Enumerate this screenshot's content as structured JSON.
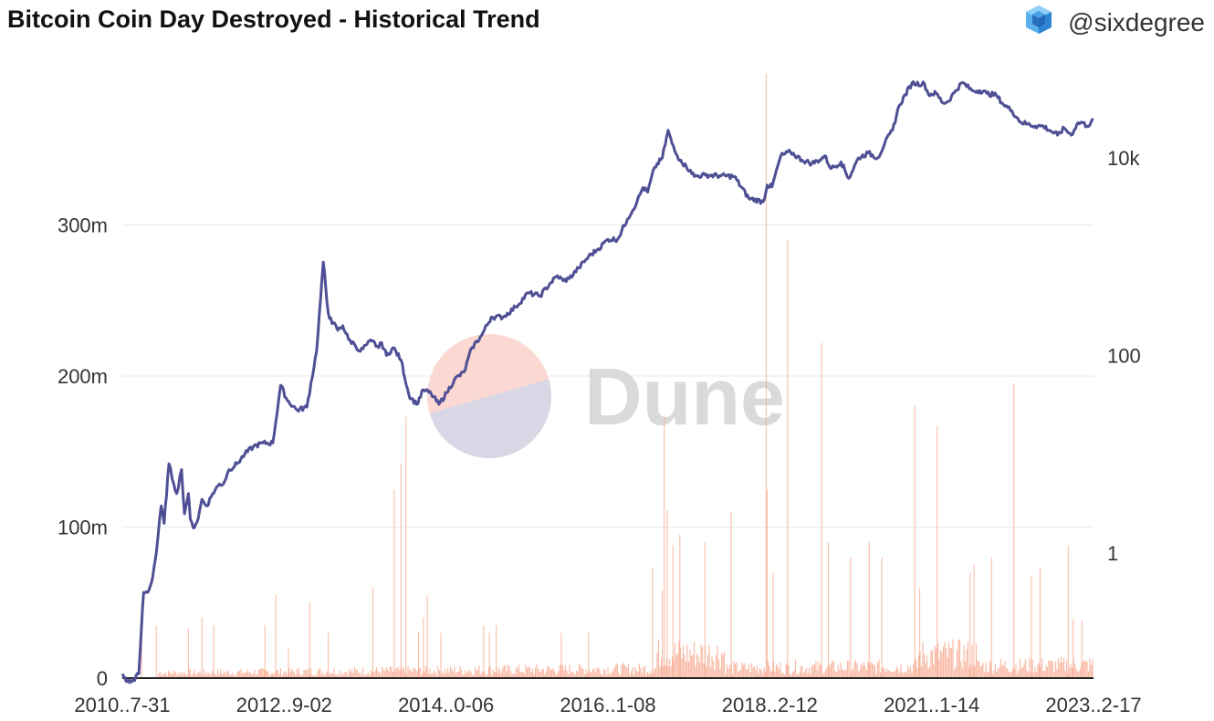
{
  "header": {
    "title": "Bitcoin Coin Day Destroyed - Historical Trend",
    "author": "@sixdegree"
  },
  "watermark": {
    "text": "Dune"
  },
  "colors": {
    "price_line": "#4f4f95",
    "cdd_bars": "#f7a98e",
    "grid": "#e9e9e9",
    "watermark_top": "#fbd9d2",
    "watermark_bottom": "#d7d7e6",
    "watermark_text": "#dadada"
  },
  "chart_data": {
    "type": "bar+line",
    "title": "Bitcoin Coin Day Destroyed - Historical Trend",
    "grid": true,
    "x_tick_labels": [
      "2010..7-31",
      "2012..9-02",
      "2014..0-06",
      "2016..1-08",
      "2018..2-12",
      "2021..1-14",
      "2023..2-17"
    ],
    "left_axis": {
      "scale": "linear",
      "ylim": [
        0,
        400000000
      ],
      "tick_values": [
        0,
        100000000,
        200000000,
        300000000
      ],
      "tick_labels": [
        "0",
        "100m",
        "200m",
        "300m"
      ]
    },
    "right_axis": {
      "scale": "log",
      "tick_values": [
        1,
        100,
        10000
      ],
      "tick_labels": [
        "1",
        "100",
        "10k"
      ]
    },
    "series": [
      {
        "kind": "bar",
        "axis": "left",
        "x": [
          0.02,
          0.035,
          0.068,
          0.082,
          0.094,
          0.147,
          0.158,
          0.171,
          0.193,
          0.212,
          0.258,
          0.28,
          0.287,
          0.292,
          0.305,
          0.314,
          0.31,
          0.328,
          0.372,
          0.378,
          0.385,
          0.452,
          0.48,
          0.546,
          0.556,
          0.558,
          0.561,
          0.567,
          0.574,
          0.6,
          0.627,
          0.663,
          0.664,
          0.67,
          0.685,
          0.72,
          0.727,
          0.75,
          0.769,
          0.782,
          0.816,
          0.821,
          0.839,
          0.877,
          0.873,
          0.895,
          0.918,
          0.936,
          0.945,
          0.974,
          0.979,
          0.988
        ],
        "y": [
          40000000,
          35000000,
          33000000,
          40000000,
          35000000,
          35000000,
          55000000,
          20000000,
          50000000,
          30000000,
          60000000,
          125000000,
          142000000,
          173000000,
          30000000,
          55000000,
          40000000,
          30000000,
          35000000,
          30000000,
          35000000,
          30000000,
          30000000,
          73000000,
          58000000,
          173000000,
          111000000,
          88000000,
          95000000,
          90000000,
          110000000,
          400000000,
          125000000,
          70000000,
          290000000,
          222000000,
          90000000,
          80000000,
          90000000,
          80000000,
          180000000,
          60000000,
          167000000,
          75000000,
          70000000,
          80000000,
          195000000,
          68000000,
          73000000,
          88000000,
          39000000,
          38000000
        ]
      },
      {
        "kind": "line",
        "axis": "right",
        "x": [
          0.0,
          0.005,
          0.01,
          0.017,
          0.02,
          0.022,
          0.026,
          0.03,
          0.035,
          0.04,
          0.043,
          0.048,
          0.053,
          0.056,
          0.061,
          0.064,
          0.068,
          0.07,
          0.073,
          0.078,
          0.082,
          0.087,
          0.093,
          0.1,
          0.104,
          0.11,
          0.118,
          0.126,
          0.135,
          0.145,
          0.155,
          0.163,
          0.17,
          0.18,
          0.19,
          0.2,
          0.207,
          0.212,
          0.216,
          0.22,
          0.222,
          0.227,
          0.233,
          0.239,
          0.245,
          0.252,
          0.257,
          0.264,
          0.267,
          0.272,
          0.279,
          0.287,
          0.295,
          0.303,
          0.31,
          0.318,
          0.326,
          0.334,
          0.342,
          0.352,
          0.36,
          0.37,
          0.38,
          0.392,
          0.405,
          0.418,
          0.43,
          0.44,
          0.448,
          0.454,
          0.46,
          0.47,
          0.48,
          0.49,
          0.5,
          0.51,
          0.52,
          0.53,
          0.536,
          0.541,
          0.548,
          0.556,
          0.562,
          0.566,
          0.57,
          0.575,
          0.581,
          0.585,
          0.589,
          0.6,
          0.615,
          0.63,
          0.645,
          0.66,
          0.664,
          0.669,
          0.678,
          0.688,
          0.7,
          0.71,
          0.718,
          0.723,
          0.73,
          0.74,
          0.748,
          0.758,
          0.768,
          0.778,
          0.785,
          0.793,
          0.8,
          0.813,
          0.826,
          0.83,
          0.838,
          0.845,
          0.85,
          0.858,
          0.865,
          0.875,
          0.883,
          0.89,
          0.9,
          0.907,
          0.916,
          0.925,
          0.932,
          0.94,
          0.948,
          0.955,
          0.963,
          0.97,
          0.977,
          0.983,
          0.988,
          0.993,
          1.0
        ],
        "y": [
          0.06,
          0.05,
          0.05,
          0.06,
          0.2,
          0.4,
          0.4,
          0.5,
          1.0,
          3.0,
          2.0,
          8.0,
          5.0,
          4.0,
          7.0,
          2.5,
          4.0,
          2.2,
          1.8,
          2.2,
          3.5,
          3.0,
          4.0,
          5.0,
          5.0,
          7.0,
          8.0,
          10.0,
          12.0,
          13.0,
          13.0,
          50.0,
          35.0,
          28.0,
          30.0,
          110.0,
          880.0,
          270.0,
          210.0,
          200.0,
          180.0,
          200.0,
          145.0,
          130.0,
          110.0,
          130.0,
          140.0,
          120.0,
          135.0,
          100.0,
          120.0,
          90.0,
          40.0,
          32.0,
          45.0,
          41.0,
          32.0,
          42.0,
          57.0,
          68.0,
          120.0,
          160.0,
          245.0,
          245.0,
          310.0,
          430.0,
          400.0,
          530.0,
          640.0,
          570.0,
          600.0,
          770.0,
          1000.0,
          1200.0,
          1500.0,
          1500.0,
          2400.0,
          3600.0,
          5000.0,
          4500.0,
          8000.0,
          10000.0,
          19000.0,
          14000.0,
          11000.0,
          9500.0,
          8000.0,
          7500.0,
          6500.0,
          6700.0,
          6600.0,
          6500.0,
          3900.0,
          3600.0,
          5300.0,
          5100.0,
          10500.0,
          11500.0,
          9500.0,
          8800.0,
          9500.0,
          10500.0,
          7800.0,
          9100.0,
          6200.0,
          10000.0,
          11200.0,
          10000.0,
          14000.0,
          19000.0,
          34000.0,
          57000.0,
          56000.0,
          44000.0,
          45000.0,
          36000.0,
          37000.0,
          48000.0,
          58000.0,
          48000.0,
          48000.0,
          45000.0,
          43000.0,
          35000.0,
          30000.0,
          23000.0,
          22000.0,
          21000.0,
          21000.0,
          19000.0,
          17000.0,
          20000.0,
          17000.0,
          22000.0,
          23000.0,
          21000.0,
          24000.0
        ]
      }
    ]
  }
}
